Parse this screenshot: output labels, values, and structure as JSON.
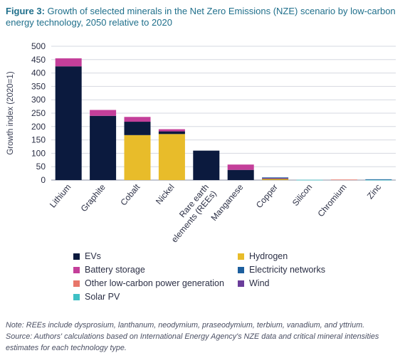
{
  "figure": {
    "label": "Figure 3:",
    "title": "Growth of selected minerals in the Net Zero Emissions (NZE) scenario by low-carbon energy technology, 2050 relative to 2020"
  },
  "chart_data": {
    "type": "bar",
    "stacked": true,
    "ylabel": "Growth index (2020=1)",
    "xlabel": "",
    "ylim": [
      0,
      500
    ],
    "yticks": [
      0,
      50,
      100,
      150,
      200,
      250,
      300,
      350,
      400,
      450,
      500
    ],
    "grid": true,
    "legend_position": "bottom",
    "categories": [
      "Lithium",
      "Graphite",
      "Cobalt",
      "Nickel",
      "Rare earth elements (REEs)",
      "Manganese",
      "Copper",
      "Silicon",
      "Chromium",
      "Zinc"
    ],
    "category_label_lines": [
      [
        "Lithium"
      ],
      [
        "Graphite"
      ],
      [
        "Cobalt"
      ],
      [
        "Nickel"
      ],
      [
        "Rare earth",
        "elements (REEs)"
      ],
      [
        "Manganese"
      ],
      [
        "Copper"
      ],
      [
        "Silicon"
      ],
      [
        "Chromium"
      ],
      [
        "Zinc"
      ]
    ],
    "series": [
      {
        "name": "EVs",
        "color": "#0b1a3e",
        "values": [
          425,
          240,
          50,
          10,
          110,
          38,
          1,
          0,
          0,
          0
        ]
      },
      {
        "name": "Battery storage",
        "color": "#c43f9a",
        "values": [
          30,
          22,
          18,
          8,
          0,
          20,
          1,
          0,
          0,
          0
        ]
      },
      {
        "name": "Other low-carbon power generation",
        "color": "#e8766a",
        "values": [
          0,
          0,
          0,
          0,
          0,
          0,
          0,
          0,
          2,
          0
        ]
      },
      {
        "name": "Solar PV",
        "color": "#3ec0c5",
        "values": [
          0,
          0,
          0,
          0,
          0,
          0,
          0,
          1,
          0,
          1
        ]
      },
      {
        "name": "Hydrogen",
        "color": "#e8bc2a",
        "values": [
          0,
          0,
          168,
          172,
          0,
          0,
          5,
          0,
          0,
          0
        ]
      },
      {
        "name": "Electricity networks",
        "color": "#1d5f9e",
        "values": [
          0,
          0,
          0,
          0,
          0,
          0,
          3,
          0,
          0,
          2
        ]
      },
      {
        "name": "Wind",
        "color": "#6a3d9a",
        "values": [
          0,
          0,
          0,
          0,
          0,
          0,
          0,
          0,
          0,
          0
        ]
      }
    ],
    "stack_order": [
      "Hydrogen",
      "EVs",
      "Battery storage",
      "Other low-carbon power generation",
      "Solar PV",
      "Electricity networks",
      "Wind"
    ]
  },
  "legend": [
    {
      "label": "EVs",
      "color": "#0b1a3e"
    },
    {
      "label": "Hydrogen",
      "color": "#e8bc2a"
    },
    {
      "label": "Battery storage",
      "color": "#c43f9a"
    },
    {
      "label": "Electricity networks",
      "color": "#1d5f9e"
    },
    {
      "label": "Other low-carbon power generation",
      "color": "#e8766a"
    },
    {
      "label": "Wind",
      "color": "#6a3d9a"
    },
    {
      "label": "Solar PV",
      "color": "#3ec0c5"
    }
  ],
  "notes": {
    "note": "Note: REEs include dysprosium, lanthanum, neodymium, praseodymium, terbium, vanadium, and yttrium.",
    "source_line1": "Source: Authors' calculations based on International Energy Agency's NZE data and critical mineral intensities",
    "source_line2": "estimates for each technology type."
  }
}
